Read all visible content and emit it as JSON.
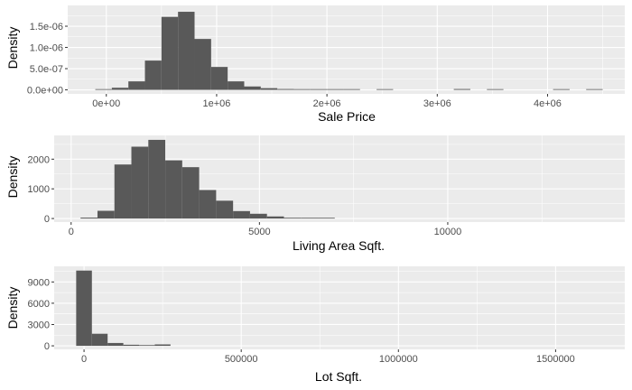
{
  "chart_data": [
    {
      "type": "bar",
      "xlabel": "Sale Price",
      "ylabel": "Density",
      "x_tick_labels": [
        "0e+00",
        "1e+06",
        "2e+06",
        "3e+06",
        "4e+06"
      ],
      "x_ticks": [
        0,
        1000000,
        2000000,
        3000000,
        4000000
      ],
      "y_tick_labels": [
        "0.0e+00",
        "5.0e-07",
        "1.0e-06",
        "1.5e-06"
      ],
      "y_ticks": [
        0,
        5e-07,
        1e-06,
        1.5e-06
      ],
      "xlim": [
        -350000,
        4700000
      ],
      "ylim": [
        -9.5e-08,
        1.99e-06
      ],
      "grid": true,
      "bins": [
        {
          "x0": -100000,
          "x1": 50000,
          "value": 1e-08
        },
        {
          "x0": 50000,
          "x1": 200000,
          "value": 5e-08
        },
        {
          "x0": 200000,
          "x1": 350000,
          "value": 2e-07
        },
        {
          "x0": 350000,
          "x1": 500000,
          "value": 6.9e-07
        },
        {
          "x0": 500000,
          "x1": 650000,
          "value": 1.72e-06
        },
        {
          "x0": 650000,
          "x1": 800000,
          "value": 1.84e-06
        },
        {
          "x0": 800000,
          "x1": 950000,
          "value": 1.2e-06
        },
        {
          "x0": 950000,
          "x1": 1100000,
          "value": 5.4e-07
        },
        {
          "x0": 1100000,
          "x1": 1250000,
          "value": 2e-07
        },
        {
          "x0": 1250000,
          "x1": 1400000,
          "value": 8e-08
        },
        {
          "x0": 1400000,
          "x1": 1550000,
          "value": 4e-08
        },
        {
          "x0": 1550000,
          "x1": 1700000,
          "value": 2e-08
        },
        {
          "x0": 1700000,
          "x1": 1850000,
          "value": 1e-08
        },
        {
          "x0": 1850000,
          "x1": 2000000,
          "value": 5e-09
        },
        {
          "x0": 2000000,
          "x1": 2150000,
          "value": 5e-09
        },
        {
          "x0": 2150000,
          "x1": 2300000,
          "value": 5e-09
        },
        {
          "x0": 2450000,
          "x1": 2600000,
          "value": 5e-09
        },
        {
          "x0": 3150000,
          "x1": 3300000,
          "value": 2e-08
        },
        {
          "x0": 3450000,
          "x1": 3600000,
          "value": 5e-09
        },
        {
          "x0": 4050000,
          "x1": 4200000,
          "value": 5e-09
        },
        {
          "x0": 4350000,
          "x1": 4500000,
          "value": 5e-09
        }
      ]
    },
    {
      "type": "bar",
      "xlabel": "Living Area Sqft.",
      "ylabel": "Density",
      "x_tick_labels": [
        "0",
        "5000",
        "10000"
      ],
      "x_ticks": [
        0,
        5000,
        10000
      ],
      "y_tick_labels": [
        "0",
        "1000",
        "2000"
      ],
      "y_ticks": [
        0,
        1000,
        2000
      ],
      "xlim": [
        -450,
        14700
      ],
      "ylim": [
        -120,
        2800
      ],
      "grid": true,
      "bins": [
        {
          "x0": 250,
          "x1": 700,
          "value": 30
        },
        {
          "x0": 700,
          "x1": 1150,
          "value": 260
        },
        {
          "x0": 1150,
          "x1": 1600,
          "value": 1820
        },
        {
          "x0": 1600,
          "x1": 2050,
          "value": 2420
        },
        {
          "x0": 2050,
          "x1": 2500,
          "value": 2650
        },
        {
          "x0": 2500,
          "x1": 2950,
          "value": 1960
        },
        {
          "x0": 2950,
          "x1": 3400,
          "value": 1730
        },
        {
          "x0": 3400,
          "x1": 3850,
          "value": 960
        },
        {
          "x0": 3850,
          "x1": 4300,
          "value": 600
        },
        {
          "x0": 4300,
          "x1": 4750,
          "value": 250
        },
        {
          "x0": 4750,
          "x1": 5200,
          "value": 160
        },
        {
          "x0": 5200,
          "x1": 5650,
          "value": 70
        },
        {
          "x0": 5650,
          "x1": 6100,
          "value": 25
        },
        {
          "x0": 6100,
          "x1": 6550,
          "value": 15
        },
        {
          "x0": 6550,
          "x1": 7000,
          "value": 10
        }
      ]
    },
    {
      "type": "bar",
      "xlabel": "Lot Sqft.",
      "ylabel": "Density",
      "x_tick_labels": [
        "0",
        "500000",
        "1000000",
        "1500000"
      ],
      "x_ticks": [
        0,
        500000,
        1000000,
        1500000
      ],
      "y_tick_labels": [
        "0",
        "3000",
        "6000",
        "9000"
      ],
      "y_ticks": [
        0,
        3000,
        6000,
        9000
      ],
      "xlim": [
        -95000,
        1720000
      ],
      "ylim": [
        -500,
        11200
      ],
      "grid": true,
      "bins": [
        {
          "x0": -25000,
          "x1": 25000,
          "value": 10600
        },
        {
          "x0": 25000,
          "x1": 75000,
          "value": 1700
        },
        {
          "x0": 75000,
          "x1": 125000,
          "value": 400
        },
        {
          "x0": 125000,
          "x1": 175000,
          "value": 150
        },
        {
          "x0": 175000,
          "x1": 225000,
          "value": 50
        },
        {
          "x0": 225000,
          "x1": 275000,
          "value": 200
        }
      ]
    }
  ]
}
